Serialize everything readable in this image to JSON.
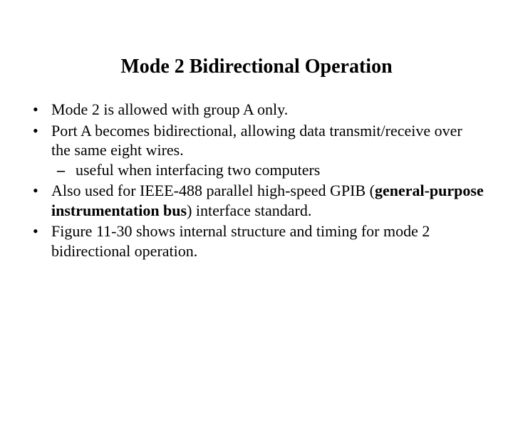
{
  "title": "Mode 2 Bidirectional Operation",
  "bullets": {
    "b1": "Mode 2 is allowed with group A only.",
    "b2": "Port A becomes bidirectional, allowing data transmit/receive over the same eight wires.",
    "b2_sub1": "useful when interfacing two computers",
    "b3_pre": "Also used for IEEE-488 parallel high-speed GPIB (",
    "b3_bold": "general-purpose instrumentation bus",
    "b3_post": ") interface standard.",
    "b4": "Figure 11-30 shows internal structure and timing for mode 2 bidirectional operation."
  },
  "style": {
    "background_color": "#ffffff",
    "text_color": "#000000",
    "title_fontsize": 28,
    "body_fontsize": 22,
    "font_family": "Times New Roman"
  }
}
